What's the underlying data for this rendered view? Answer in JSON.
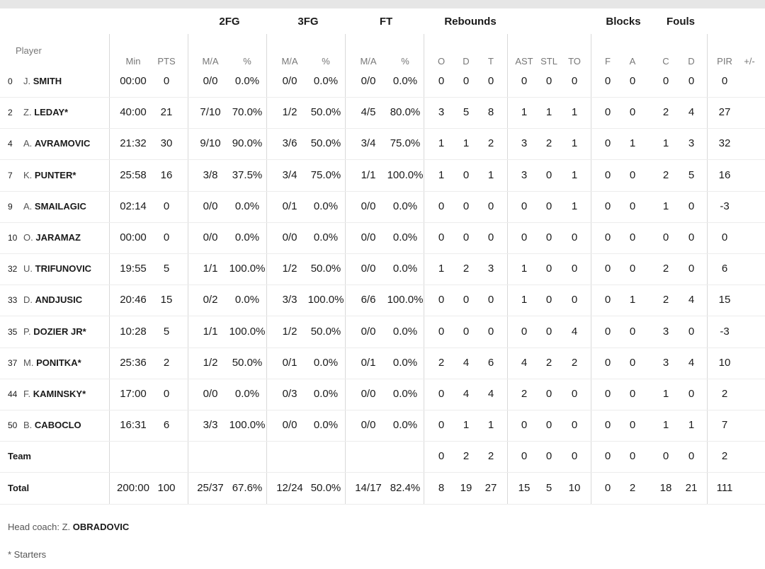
{
  "groups": {
    "fg2": "2FG",
    "fg3": "3FG",
    "ft": "FT",
    "reb": "Rebounds",
    "blk": "Blocks",
    "fouls": "Fouls"
  },
  "headers": {
    "player": "Player",
    "min": "Min",
    "pts": "PTS",
    "fg2_ma": "M/A",
    "fg2_pct": "%",
    "fg3_ma": "M/A",
    "fg3_pct": "%",
    "ft_ma": "M/A",
    "ft_pct": "%",
    "off": "O",
    "def": "D",
    "tot": "T",
    "ast": "AST",
    "stl": "STL",
    "to": "TO",
    "blk_f": "F",
    "blk_a": "A",
    "foul_c": "C",
    "foul_d": "D",
    "pir": "PIR",
    "pm": "+/-"
  },
  "players": [
    {
      "num": "0",
      "init": "J.",
      "last": "SMITH",
      "min": "00:00",
      "pts": "0",
      "fg2": "0/0",
      "fg2p": "0.0%",
      "fg3": "0/0",
      "fg3p": "0.0%",
      "ft": "0/0",
      "ftp": "0.0%",
      "o": "0",
      "d": "0",
      "t": "0",
      "ast": "0",
      "stl": "0",
      "to": "0",
      "bf": "0",
      "ba": "0",
      "fc": "0",
      "fd": "0",
      "pir": "0",
      "pm": ""
    },
    {
      "num": "2",
      "init": "Z.",
      "last": "LEDAY*",
      "min": "40:00",
      "pts": "21",
      "fg2": "7/10",
      "fg2p": "70.0%",
      "fg3": "1/2",
      "fg3p": "50.0%",
      "ft": "4/5",
      "ftp": "80.0%",
      "o": "3",
      "d": "5",
      "t": "8",
      "ast": "1",
      "stl": "1",
      "to": "1",
      "bf": "0",
      "ba": "0",
      "fc": "2",
      "fd": "4",
      "pir": "27",
      "pm": ""
    },
    {
      "num": "4",
      "init": "A.",
      "last": "AVRAMOVIC",
      "min": "21:32",
      "pts": "30",
      "fg2": "9/10",
      "fg2p": "90.0%",
      "fg3": "3/6",
      "fg3p": "50.0%",
      "ft": "3/4",
      "ftp": "75.0%",
      "o": "1",
      "d": "1",
      "t": "2",
      "ast": "3",
      "stl": "2",
      "to": "1",
      "bf": "0",
      "ba": "1",
      "fc": "1",
      "fd": "3",
      "pir": "32",
      "pm": ""
    },
    {
      "num": "7",
      "init": "K.",
      "last": "PUNTER*",
      "min": "25:58",
      "pts": "16",
      "fg2": "3/8",
      "fg2p": "37.5%",
      "fg3": "3/4",
      "fg3p": "75.0%",
      "ft": "1/1",
      "ftp": "100.0%",
      "o": "1",
      "d": "0",
      "t": "1",
      "ast": "3",
      "stl": "0",
      "to": "1",
      "bf": "0",
      "ba": "0",
      "fc": "2",
      "fd": "5",
      "pir": "16",
      "pm": ""
    },
    {
      "num": "9",
      "init": "A.",
      "last": "SMAILAGIC",
      "min": "02:14",
      "pts": "0",
      "fg2": "0/0",
      "fg2p": "0.0%",
      "fg3": "0/1",
      "fg3p": "0.0%",
      "ft": "0/0",
      "ftp": "0.0%",
      "o": "0",
      "d": "0",
      "t": "0",
      "ast": "0",
      "stl": "0",
      "to": "1",
      "bf": "0",
      "ba": "0",
      "fc": "1",
      "fd": "0",
      "pir": "-3",
      "pm": ""
    },
    {
      "num": "10",
      "init": "O.",
      "last": "JARAMAZ",
      "min": "00:00",
      "pts": "0",
      "fg2": "0/0",
      "fg2p": "0.0%",
      "fg3": "0/0",
      "fg3p": "0.0%",
      "ft": "0/0",
      "ftp": "0.0%",
      "o": "0",
      "d": "0",
      "t": "0",
      "ast": "0",
      "stl": "0",
      "to": "0",
      "bf": "0",
      "ba": "0",
      "fc": "0",
      "fd": "0",
      "pir": "0",
      "pm": ""
    },
    {
      "num": "32",
      "init": "U.",
      "last": "TRIFUNOVIC",
      "min": "19:55",
      "pts": "5",
      "fg2": "1/1",
      "fg2p": "100.0%",
      "fg3": "1/2",
      "fg3p": "50.0%",
      "ft": "0/0",
      "ftp": "0.0%",
      "o": "1",
      "d": "2",
      "t": "3",
      "ast": "1",
      "stl": "0",
      "to": "0",
      "bf": "0",
      "ba": "0",
      "fc": "2",
      "fd": "0",
      "pir": "6",
      "pm": ""
    },
    {
      "num": "33",
      "init": "D.",
      "last": "ANDJUSIC",
      "min": "20:46",
      "pts": "15",
      "fg2": "0/2",
      "fg2p": "0.0%",
      "fg3": "3/3",
      "fg3p": "100.0%",
      "ft": "6/6",
      "ftp": "100.0%",
      "o": "0",
      "d": "0",
      "t": "0",
      "ast": "1",
      "stl": "0",
      "to": "0",
      "bf": "0",
      "ba": "1",
      "fc": "2",
      "fd": "4",
      "pir": "15",
      "pm": ""
    },
    {
      "num": "35",
      "init": "P.",
      "last": "DOZIER JR*",
      "min": "10:28",
      "pts": "5",
      "fg2": "1/1",
      "fg2p": "100.0%",
      "fg3": "1/2",
      "fg3p": "50.0%",
      "ft": "0/0",
      "ftp": "0.0%",
      "o": "0",
      "d": "0",
      "t": "0",
      "ast": "0",
      "stl": "0",
      "to": "4",
      "bf": "0",
      "ba": "0",
      "fc": "3",
      "fd": "0",
      "pir": "-3",
      "pm": ""
    },
    {
      "num": "37",
      "init": "M.",
      "last": "PONITKA*",
      "min": "25:36",
      "pts": "2",
      "fg2": "1/2",
      "fg2p": "50.0%",
      "fg3": "0/1",
      "fg3p": "0.0%",
      "ft": "0/1",
      "ftp": "0.0%",
      "o": "2",
      "d": "4",
      "t": "6",
      "ast": "4",
      "stl": "2",
      "to": "2",
      "bf": "0",
      "ba": "0",
      "fc": "3",
      "fd": "4",
      "pir": "10",
      "pm": ""
    },
    {
      "num": "44",
      "init": "F.",
      "last": "KAMINSKY*",
      "min": "17:00",
      "pts": "0",
      "fg2": "0/0",
      "fg2p": "0.0%",
      "fg3": "0/3",
      "fg3p": "0.0%",
      "ft": "0/0",
      "ftp": "0.0%",
      "o": "0",
      "d": "4",
      "t": "4",
      "ast": "2",
      "stl": "0",
      "to": "0",
      "bf": "0",
      "ba": "0",
      "fc": "1",
      "fd": "0",
      "pir": "2",
      "pm": ""
    },
    {
      "num": "50",
      "init": "B.",
      "last": "CABOCLO",
      "min": "16:31",
      "pts": "6",
      "fg2": "3/3",
      "fg2p": "100.0%",
      "fg3": "0/0",
      "fg3p": "0.0%",
      "ft": "0/0",
      "ftp": "0.0%",
      "o": "0",
      "d": "1",
      "t": "1",
      "ast": "0",
      "stl": "0",
      "to": "0",
      "bf": "0",
      "ba": "0",
      "fc": "1",
      "fd": "1",
      "pir": "7",
      "pm": ""
    }
  ],
  "team": {
    "label": "Team",
    "min": "",
    "pts": "",
    "fg2": "",
    "fg2p": "",
    "fg3": "",
    "fg3p": "",
    "ft": "",
    "ftp": "",
    "o": "0",
    "d": "2",
    "t": "2",
    "ast": "0",
    "stl": "0",
    "to": "0",
    "bf": "0",
    "ba": "0",
    "fc": "0",
    "fd": "0",
    "pir": "2",
    "pm": ""
  },
  "total": {
    "label": "Total",
    "min": "200:00",
    "pts": "100",
    "fg2": "25/37",
    "fg2p": "67.6%",
    "fg3": "12/24",
    "fg3p": "50.0%",
    "ft": "14/17",
    "ftp": "82.4%",
    "o": "8",
    "d": "19",
    "t": "27",
    "ast": "15",
    "stl": "5",
    "to": "10",
    "bf": "0",
    "ba": "2",
    "fc": "18",
    "fd": "21",
    "pir": "111",
    "pm": ""
  },
  "footer": {
    "coach_label": "Head coach: ",
    "coach_init": "Z.",
    "coach_last": "OBRADOVIC",
    "starters_note": "* Starters"
  }
}
